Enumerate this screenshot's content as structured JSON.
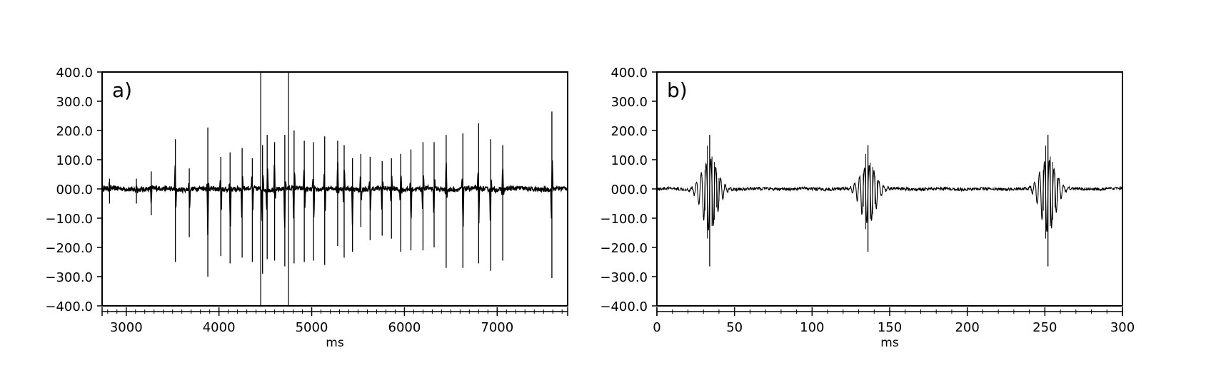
{
  "chart_data": [
    {
      "type": "line",
      "panel_label": "a)",
      "xlabel": "ms",
      "ylabel": "",
      "xlim": [
        2740,
        7760
      ],
      "ylim": [
        -400,
        400
      ],
      "x_ticks": [
        3000,
        4000,
        5000,
        6000,
        7000
      ],
      "x_tick_labels": [
        "3000",
        "4000",
        "5000",
        "6000",
        "7000"
      ],
      "y_ticks": [
        400,
        300,
        200,
        100,
        0,
        -100,
        -200,
        -300,
        -400
      ],
      "y_tick_labels": [
        "400.0",
        "300.0",
        "200.0",
        "100.0",
        "000.0",
        "−100.0",
        "−200.0",
        "−300.0",
        "−400.0"
      ],
      "grid": false,
      "selection_window_ms": [
        4450,
        4750
      ],
      "noise_amplitude": 8,
      "spikes": [
        {
          "x": 2820,
          "max": 35,
          "min": -50
        },
        {
          "x": 3110,
          "max": 35,
          "min": -50
        },
        {
          "x": 3270,
          "max": 60,
          "min": -90
        },
        {
          "x": 3530,
          "max": 170,
          "min": -250
        },
        {
          "x": 3680,
          "max": 70,
          "min": -165
        },
        {
          "x": 3880,
          "max": 210,
          "min": -300
        },
        {
          "x": 4020,
          "max": 110,
          "min": -230
        },
        {
          "x": 4120,
          "max": 125,
          "min": -255
        },
        {
          "x": 4250,
          "max": 140,
          "min": -235
        },
        {
          "x": 4360,
          "max": 105,
          "min": -250
        },
        {
          "x": 4470,
          "max": 150,
          "min": -290
        },
        {
          "x": 4520,
          "max": 185,
          "min": -240
        },
        {
          "x": 4600,
          "max": 160,
          "min": -245
        },
        {
          "x": 4710,
          "max": 185,
          "min": -265
        },
        {
          "x": 4810,
          "max": 200,
          "min": -255
        },
        {
          "x": 4920,
          "max": 165,
          "min": -250
        },
        {
          "x": 5020,
          "max": 160,
          "min": -245
        },
        {
          "x": 5140,
          "max": 180,
          "min": -260
        },
        {
          "x": 5280,
          "max": 165,
          "min": -195
        },
        {
          "x": 5350,
          "max": 150,
          "min": -235
        },
        {
          "x": 5440,
          "max": 105,
          "min": -215
        },
        {
          "x": 5530,
          "max": 120,
          "min": -130
        },
        {
          "x": 5630,
          "max": 110,
          "min": -175
        },
        {
          "x": 5760,
          "max": 95,
          "min": -160
        },
        {
          "x": 5860,
          "max": 105,
          "min": -170
        },
        {
          "x": 5960,
          "max": 120,
          "min": -215
        },
        {
          "x": 6070,
          "max": 135,
          "min": -210
        },
        {
          "x": 6200,
          "max": 160,
          "min": -210
        },
        {
          "x": 6320,
          "max": 160,
          "min": -200
        },
        {
          "x": 6450,
          "max": 185,
          "min": -270
        },
        {
          "x": 6630,
          "max": 190,
          "min": -270
        },
        {
          "x": 6800,
          "max": 225,
          "min": -255
        },
        {
          "x": 6930,
          "max": 170,
          "min": -280
        },
        {
          "x": 7060,
          "max": 150,
          "min": -245
        },
        {
          "x": 7590,
          "max": 265,
          "min": -305
        }
      ]
    },
    {
      "type": "line",
      "panel_label": "b)",
      "xlabel": "ms",
      "ylabel": "",
      "xlim": [
        0,
        300
      ],
      "ylim": [
        -400,
        400
      ],
      "x_ticks": [
        0,
        50,
        100,
        150,
        200,
        250,
        300
      ],
      "x_tick_labels": [
        "0",
        "50",
        "100",
        "150",
        "200",
        "250",
        "300"
      ],
      "y_ticks": [
        400,
        300,
        200,
        100,
        0,
        -100,
        -200,
        -300,
        -400
      ],
      "y_tick_labels": [
        "400.0",
        "300.0",
        "200.0",
        "100.0",
        "000.0",
        "−100.0",
        "−200.0",
        "−300.0",
        "−400.0"
      ],
      "grid": false,
      "noise_amplitude": 5,
      "spikes": [
        {
          "x": 34,
          "max": 185,
          "min": -265
        },
        {
          "x": 136,
          "max": 150,
          "min": -215
        },
        {
          "x": 252,
          "max": 185,
          "min": -265
        }
      ]
    }
  ]
}
